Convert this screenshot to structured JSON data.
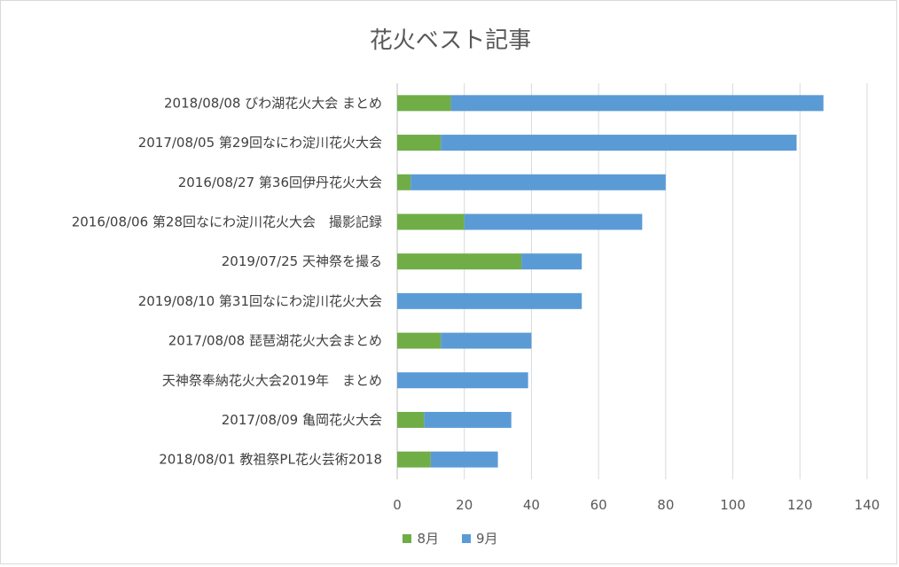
{
  "chart_data": {
    "type": "bar",
    "orientation": "horizontal",
    "stacked": true,
    "title": "花火ベスト記事",
    "categories": [
      "2018/08/08 びわ湖花火大会 まとめ",
      "2017/08/05 第29回なにわ淀川花火大会",
      "2016/08/27 第36回伊丹花火大会",
      "2016/08/06 第28回なにわ淀川花火大会　撮影記録",
      "2019/07/25 天神祭を撮る",
      "2019/08/10 第31回なにわ淀川花火大会",
      "2017/08/08 琵琶湖花火大会まとめ",
      "天神祭奉納花火大会2019年　まとめ",
      "2017/08/09 亀岡花火大会",
      "2018/08/01 教祖祭PL花火芸術2018"
    ],
    "series": [
      {
        "name": "8月",
        "color": "#70ad47",
        "values": [
          16,
          13,
          4,
          20,
          37,
          0,
          13,
          0,
          8,
          10
        ]
      },
      {
        "name": "9月",
        "color": "#5b9bd5",
        "values": [
          111,
          106,
          76,
          53,
          18,
          55,
          27,
          39,
          26,
          20
        ]
      }
    ],
    "xlim": [
      0,
      140
    ],
    "xticks": [
      "0",
      "20",
      "40",
      "60",
      "80",
      "100",
      "120",
      "140"
    ],
    "grid": "vertical",
    "legend": "bottom"
  }
}
